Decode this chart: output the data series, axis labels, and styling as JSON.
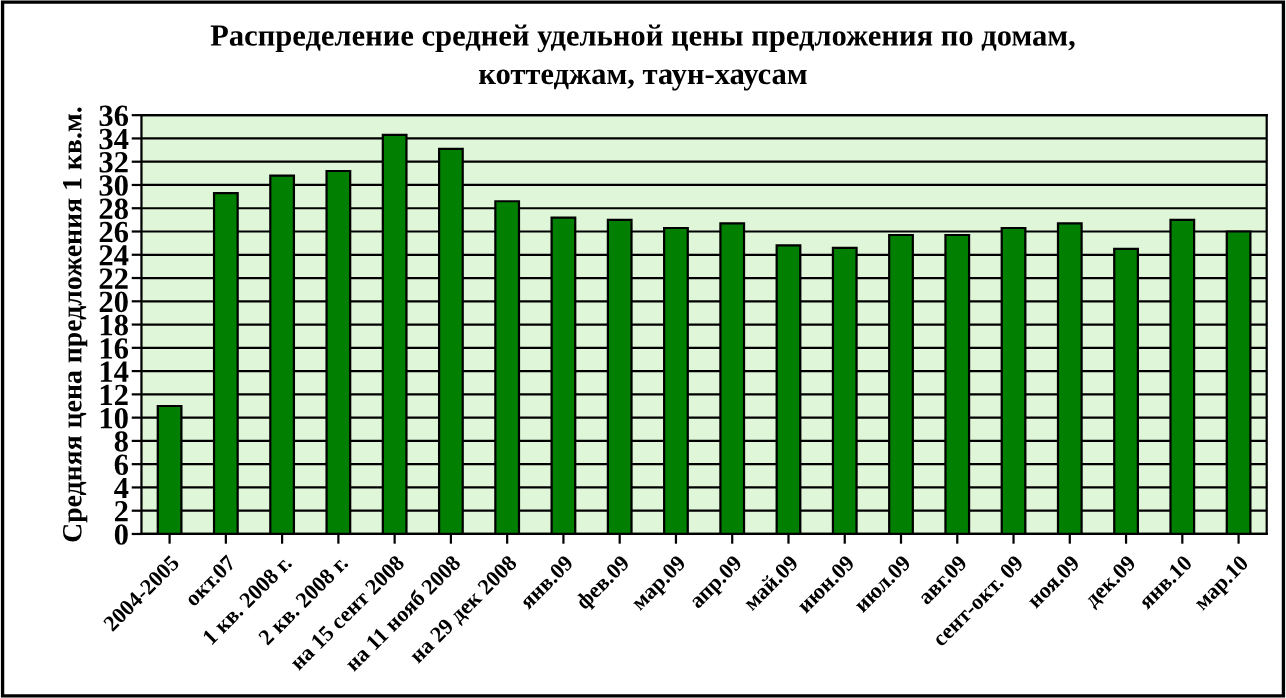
{
  "chart_data": {
    "type": "bar",
    "title": "Распределение средней удельной цены предложения по домам,\nкоттеджам, таун-хаусам",
    "ylabel": "Средняя цена предложения 1 кв.м.",
    "categories": [
      "2004-2005",
      "окт.07",
      "1 кв. 2008 г.",
      "2 кв. 2008 г.",
      "на 15 сент 2008",
      "на 11 нояб 2008",
      "на 29 дек 2008",
      "янв.09",
      "фев.09",
      "мар.09",
      "апр.09",
      "май.09",
      "июн.09",
      "июл.09",
      "авг.09",
      "сент-окт. 09",
      "ноя.09",
      "дек.09",
      "янв.10",
      "мар.10"
    ],
    "values": [
      11.0,
      29.3,
      30.8,
      31.2,
      34.3,
      33.1,
      28.6,
      27.2,
      27.0,
      26.3,
      26.7,
      24.8,
      24.6,
      25.7,
      25.7,
      26.3,
      26.7,
      24.5,
      27.0,
      26.0
    ],
    "color": "#007f00",
    "ylim": [
      0,
      36
    ],
    "yticks": [
      0,
      2,
      4,
      6,
      8,
      10,
      12,
      14,
      16,
      18,
      20,
      22,
      24,
      26,
      28,
      30,
      32,
      34,
      36
    ],
    "grid": "y"
  }
}
